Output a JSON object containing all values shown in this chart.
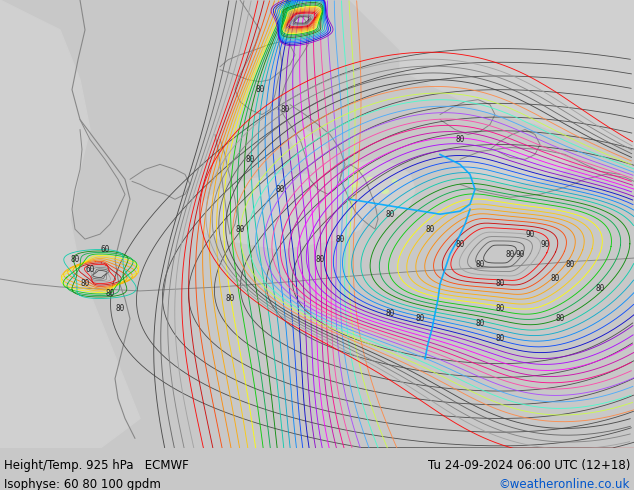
{
  "title_left_line1": "Height/Temp. 925 hPa   ECMWF",
  "title_left_line2": "Isophyse: 60 80 100 gpdm",
  "title_right_line1": "Tu 24-09-2024 06:00 UTC (12+18)",
  "title_right_line2": "©weatheronline.co.uk",
  "land_color": "#d4edaa",
  "sea_color": "#d0d0d0",
  "border_color": "#888888",
  "text_color_black": "#000000",
  "text_color_blue": "#0055cc",
  "footer_bg": "#c8c8c8",
  "figsize": [
    6.34,
    4.9
  ],
  "dpi": 100,
  "ensemble_colors": [
    "#404040",
    "#606060",
    "#808080",
    "#a0a0a0",
    "#ff0000",
    "#cc0000",
    "#ff4400",
    "#ff8800",
    "#ffaa00",
    "#ffcc00",
    "#ffff00",
    "#00cc00",
    "#00aa44",
    "#008800",
    "#00ccaa",
    "#00aacc",
    "#0088ff",
    "#0044ff",
    "#0000cc",
    "#8800cc",
    "#aa00ff",
    "#ff00ff",
    "#cc00aa",
    "#ff0088",
    "#ff44aa",
    "#aa44ff",
    "#44aaff",
    "#44ffcc",
    "#ccff44",
    "#ff8844"
  ]
}
